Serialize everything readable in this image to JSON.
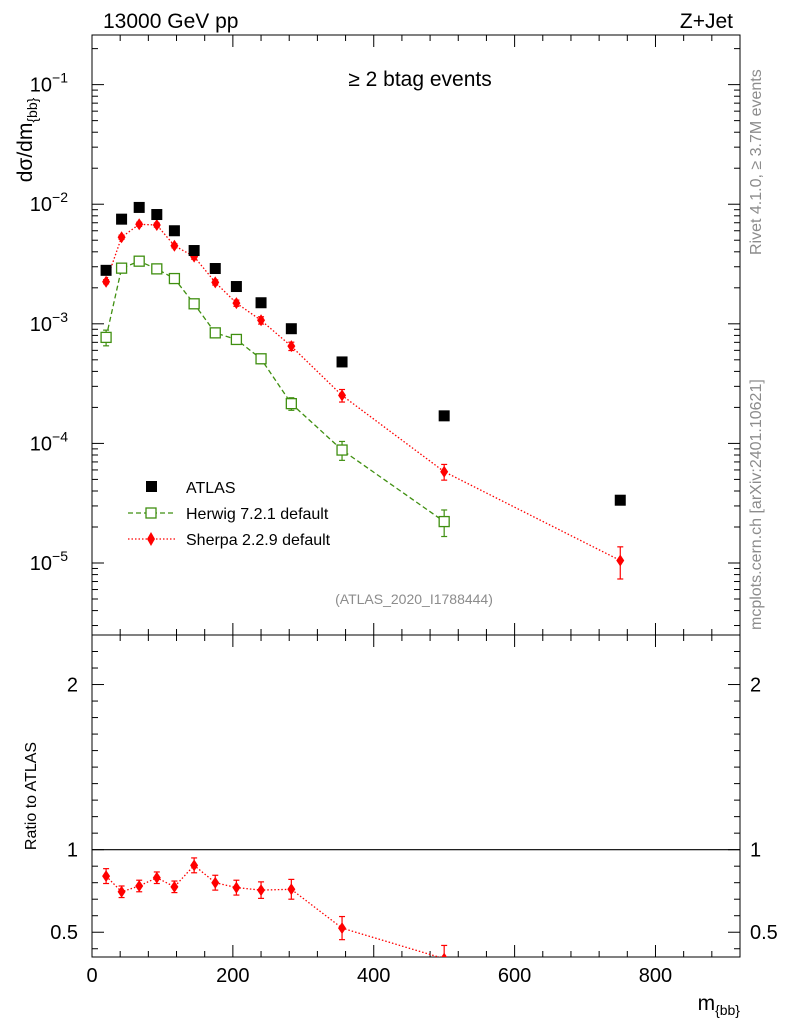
{
  "header": {
    "left": "13000 GeV pp",
    "right": "Z+Jet",
    "selection": "≥ 2 btag events"
  },
  "side_labels": {
    "rivet": "Rivet 4.1.0, ≥ 3.7M events",
    "mcplots": "mcplots.cern.ch [arXiv:2401.10621]"
  },
  "analysis_id": "(ATLAS_2020_I1788444)",
  "colors": {
    "atlas": "#000000",
    "herwig": "#3f8f10",
    "sherpa": "#ff0000",
    "grey": "#8c8c8c"
  },
  "chart_data": [
    {
      "type": "scatter",
      "panel": "main",
      "ylabel": "dσ/dm",
      "ylabel_sub": "{bb}",
      "yscale": "log",
      "xlim": [
        0,
        920
      ],
      "ylim": [
        2.5e-06,
        0.26
      ],
      "y_ticks": [
        {
          "value": 1e-05,
          "base": "10",
          "exp": "−5"
        },
        {
          "value": 0.0001,
          "base": "10",
          "exp": "−4"
        },
        {
          "value": 0.001,
          "base": "10",
          "exp": "−3"
        },
        {
          "value": 0.01,
          "base": "10",
          "exp": "−2"
        },
        {
          "value": 0.1,
          "base": "10",
          "exp": "−1"
        }
      ],
      "series": [
        {
          "name": "ATLAS",
          "style": "square",
          "x": [
            20,
            42,
            67,
            92,
            117,
            145,
            175,
            205,
            240,
            283,
            355,
            500,
            750
          ],
          "y": [
            0.0028,
            0.0075,
            0.0094,
            0.0082,
            0.006,
            0.0041,
            0.0029,
            0.00205,
            0.0015,
            0.00091,
            0.00048,
            0.00017,
            3.35e-05
          ]
        },
        {
          "name": "Herwig 7.2.1 default",
          "style": "open-square",
          "line": "dashed",
          "x": [
            20,
            42,
            67,
            92,
            117,
            145,
            175,
            205,
            240,
            283,
            355,
            500
          ],
          "y": [
            0.00077,
            0.00292,
            0.00334,
            0.00288,
            0.00239,
            0.00147,
            0.00084,
            0.00074,
            0.00051,
            0.000215,
            8.8e-05,
            2.22e-05
          ],
          "err_rel": [
            0.15,
            0.05,
            0.08,
            0.06,
            0.05,
            0.05,
            0.06,
            0.07,
            0.09,
            0.12,
            0.18,
            0.25
          ]
        },
        {
          "name": "Sherpa 2.2.9 default",
          "style": "diamond",
          "line": "dotted",
          "x": [
            20,
            42,
            67,
            92,
            117,
            145,
            175,
            205,
            240,
            283,
            355,
            500,
            750
          ],
          "y": [
            0.00225,
            0.0053,
            0.0068,
            0.0067,
            0.0045,
            0.00365,
            0.00222,
            0.00149,
            0.00107,
            0.00065,
            0.000252,
            5.8e-05,
            1.05e-05
          ],
          "err_rel": [
            0.04,
            0.04,
            0.04,
            0.04,
            0.04,
            0.05,
            0.05,
            0.06,
            0.07,
            0.08,
            0.12,
            0.15,
            0.3
          ]
        }
      ]
    },
    {
      "type": "scatter",
      "panel": "ratio",
      "ylabel": "Ratio to ATLAS",
      "xlabel": "m",
      "xlabel_sub": "{bb}",
      "xlim": [
        0,
        920
      ],
      "ylim": [
        0.35,
        2.3
      ],
      "reference": 1,
      "x_ticks": [
        "0",
        "200",
        "400",
        "600",
        "800"
      ],
      "x_tick_values": [
        0,
        200,
        400,
        600,
        800
      ],
      "y_ticks": [
        "0.5",
        "1",
        "2"
      ],
      "y_tick_values": [
        0.5,
        1,
        2
      ],
      "series": [
        {
          "name": "Sherpa 2.2.9 default",
          "x": [
            20,
            42,
            67,
            92,
            117,
            145,
            175,
            205,
            240,
            283,
            355,
            500
          ],
          "y": [
            0.84,
            0.745,
            0.78,
            0.83,
            0.775,
            0.905,
            0.8,
            0.77,
            0.755,
            0.76,
            0.525,
            0.34
          ],
          "err": [
            0.045,
            0.035,
            0.035,
            0.035,
            0.035,
            0.045,
            0.045,
            0.045,
            0.05,
            0.06,
            0.07,
            0.08
          ]
        }
      ]
    }
  ]
}
